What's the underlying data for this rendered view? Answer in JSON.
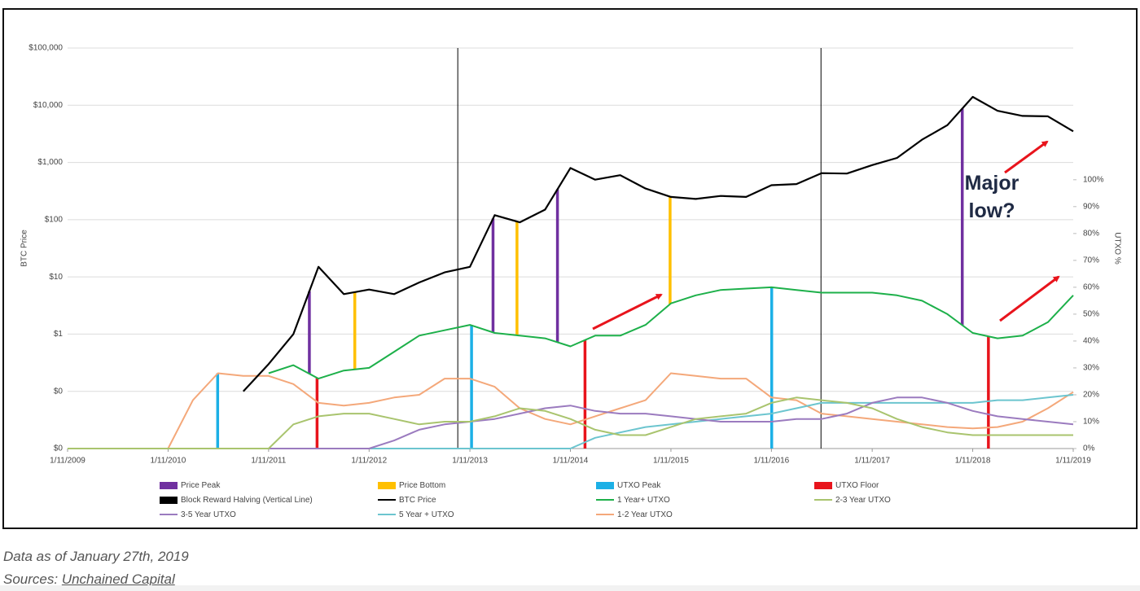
{
  "chart_data": {
    "type": "line",
    "x": [
      "2009-01-11",
      "2009-04-11",
      "2009-07-11",
      "2009-10-11",
      "2010-01-11",
      "2010-04-11",
      "2010-07-11",
      "2010-10-11",
      "2011-01-11",
      "2011-04-11",
      "2011-07-11",
      "2011-10-11",
      "2012-01-11",
      "2012-04-11",
      "2012-07-11",
      "2012-10-11",
      "2013-01-11",
      "2013-04-11",
      "2013-07-11",
      "2013-10-11",
      "2014-01-11",
      "2014-04-11",
      "2014-07-11",
      "2014-10-11",
      "2015-01-11",
      "2015-04-11",
      "2015-07-11",
      "2015-10-11",
      "2016-01-11",
      "2016-04-11",
      "2016-07-11",
      "2016-10-11",
      "2017-01-11",
      "2017-04-11",
      "2017-07-11",
      "2017-10-11",
      "2018-01-11",
      "2018-04-11",
      "2018-07-11",
      "2018-10-11",
      "2019-01-11"
    ],
    "xlim": [
      "2009-01-11",
      "2019-01-11"
    ],
    "xticks": [
      {
        "value": "2009-01-11",
        "label": "1/11/2009"
      },
      {
        "value": "2010-01-11",
        "label": "1/11/2010"
      },
      {
        "value": "2011-01-11",
        "label": "1/11/2011"
      },
      {
        "value": "2012-01-11",
        "label": "1/11/2012"
      },
      {
        "value": "2013-01-11",
        "label": "1/11/2013"
      },
      {
        "value": "2014-01-11",
        "label": "1/11/2014"
      },
      {
        "value": "2015-01-11",
        "label": "1/11/2015"
      },
      {
        "value": "2016-01-11",
        "label": "1/11/2016"
      },
      {
        "value": "2017-01-11",
        "label": "1/11/2017"
      },
      {
        "value": "2018-01-11",
        "label": "1/11/2018"
      },
      {
        "value": "2019-01-11",
        "label": "1/11/2019"
      }
    ],
    "ylabel": "BTC Price",
    "y2label": "UTXO %",
    "ylog": true,
    "grid": true,
    "ylim": [
      0.01,
      100000
    ],
    "yticks": [
      {
        "value": 0.01,
        "label": "$0"
      },
      {
        "value": 0.1,
        "label": "$0"
      },
      {
        "value": 1,
        "label": "$1"
      },
      {
        "value": 10,
        "label": "$10"
      },
      {
        "value": 100,
        "label": "$100"
      },
      {
        "value": 1000,
        "label": "$1,000"
      },
      {
        "value": 10000,
        "label": "$10,000"
      },
      {
        "value": 100000,
        "label": "$100,000"
      }
    ],
    "y2lim": [
      0,
      149
    ],
    "y2ticks": [
      {
        "value": 0,
        "label": "0%"
      },
      {
        "value": 10,
        "label": "10%"
      },
      {
        "value": 20,
        "label": "20%"
      },
      {
        "value": 30,
        "label": "30%"
      },
      {
        "value": 40,
        "label": "40%"
      },
      {
        "value": 50,
        "label": "50%"
      },
      {
        "value": 60,
        "label": "60%"
      },
      {
        "value": 70,
        "label": "70%"
      },
      {
        "value": 80,
        "label": "80%"
      },
      {
        "value": 90,
        "label": "90%"
      },
      {
        "value": 100,
        "label": "100%"
      }
    ],
    "markers": [
      {
        "name": "Price Peak",
        "color": "#7030a0",
        "axis": "y",
        "x": [
          "2011-06-08",
          "2013-04-05",
          "2013-11-25",
          "2017-12-04"
        ]
      },
      {
        "name": "Price Bottom",
        "color": "#ffc000",
        "axis": "y",
        "x": [
          "2011-11-20",
          "2013-07-01",
          "2015-01-08"
        ]
      },
      {
        "name": "UTXO Peak",
        "color": "#1cb0e6",
        "axis": "y2",
        "x": [
          "2010-07-10",
          "2013-01-17",
          "2016-01-12"
        ]
      },
      {
        "name": "UTXO Floor",
        "color": "#e8141c",
        "axis": "y2",
        "x": [
          "2011-07-06",
          "2014-03-05",
          "2018-03-09"
        ]
      },
      {
        "name": "Block Reward Halving (Vertical Line)",
        "color": "#000000",
        "x": [
          "2012-11-28",
          "2016-07-09"
        ]
      }
    ],
    "series": [
      {
        "name": "BTC Price",
        "color": "#000000",
        "axis": "y",
        "values": [
          null,
          null,
          null,
          null,
          null,
          null,
          null,
          0.1,
          0.3,
          1,
          15,
          5,
          6,
          5,
          8,
          12,
          15,
          120,
          90,
          150,
          800,
          500,
          600,
          350,
          250,
          230,
          260,
          250,
          400,
          420,
          650,
          640,
          900,
          1200,
          2500,
          4500,
          14000,
          8000,
          6500,
          6400,
          3500
        ]
      },
      {
        "name": "1 Year+ UTXO",
        "color": "#1db04a",
        "axis": "y2",
        "values": [
          null,
          null,
          null,
          null,
          null,
          null,
          null,
          null,
          28,
          31,
          26,
          29,
          30,
          36,
          42,
          44,
          46,
          43,
          42,
          41,
          38,
          42,
          42,
          46,
          54,
          57,
          59,
          59.5,
          60,
          59,
          58,
          58,
          58,
          57,
          55,
          50,
          43,
          41,
          42,
          47,
          57
        ]
      },
      {
        "name": "2-3 Year UTXO",
        "color": "#a9c46e",
        "axis": "y2",
        "values": [
          0,
          0,
          0,
          0,
          0,
          0,
          0,
          0,
          0,
          9,
          12,
          13,
          13,
          11,
          9,
          10,
          10,
          12,
          15,
          14,
          11,
          7,
          5,
          5,
          8,
          11,
          12,
          13,
          17,
          19,
          18,
          17,
          15,
          11,
          8,
          6,
          5,
          5,
          5,
          5,
          5
        ]
      },
      {
        "name": "3-5 Year UTXO",
        "color": "#9b7bbf",
        "axis": "y2",
        "values": [
          0,
          0,
          0,
          0,
          0,
          0,
          0,
          0,
          0,
          0,
          0,
          0,
          0,
          3,
          7,
          9,
          10,
          11,
          13,
          15,
          16,
          14,
          13,
          13,
          12,
          11,
          10,
          10,
          10,
          11,
          11,
          13,
          17,
          19,
          19,
          17,
          14,
          12,
          11,
          10,
          9
        ]
      },
      {
        "name": "5 Year + UTXO",
        "color": "#6cc5cf",
        "axis": "y2",
        "values": [
          0,
          0,
          0,
          0,
          0,
          0,
          0,
          0,
          0,
          0,
          0,
          0,
          0,
          0,
          0,
          0,
          0,
          0,
          0,
          0,
          0,
          4,
          6,
          8,
          9,
          10,
          11,
          12,
          13,
          15,
          17,
          17,
          17,
          17,
          17,
          17,
          17,
          18,
          18,
          19,
          20
        ]
      },
      {
        "name": "1-2 Year UTXO",
        "color": "#f4a87a",
        "axis": "y2",
        "values": [
          0,
          0,
          0,
          0,
          0,
          18,
          28,
          27,
          27,
          24,
          17,
          16,
          17,
          19,
          20,
          26,
          26,
          23,
          15,
          11,
          9,
          12,
          15,
          18,
          28,
          27,
          26,
          26,
          19,
          18,
          13,
          12,
          11,
          10,
          9,
          8,
          7.5,
          8,
          10,
          15,
          21
        ]
      }
    ],
    "annotation": "Major low?"
  },
  "caption": {
    "note": "Data as of January 27th, 2019",
    "sources_label": "Sources:",
    "sources_link": "Unchained Capital"
  }
}
